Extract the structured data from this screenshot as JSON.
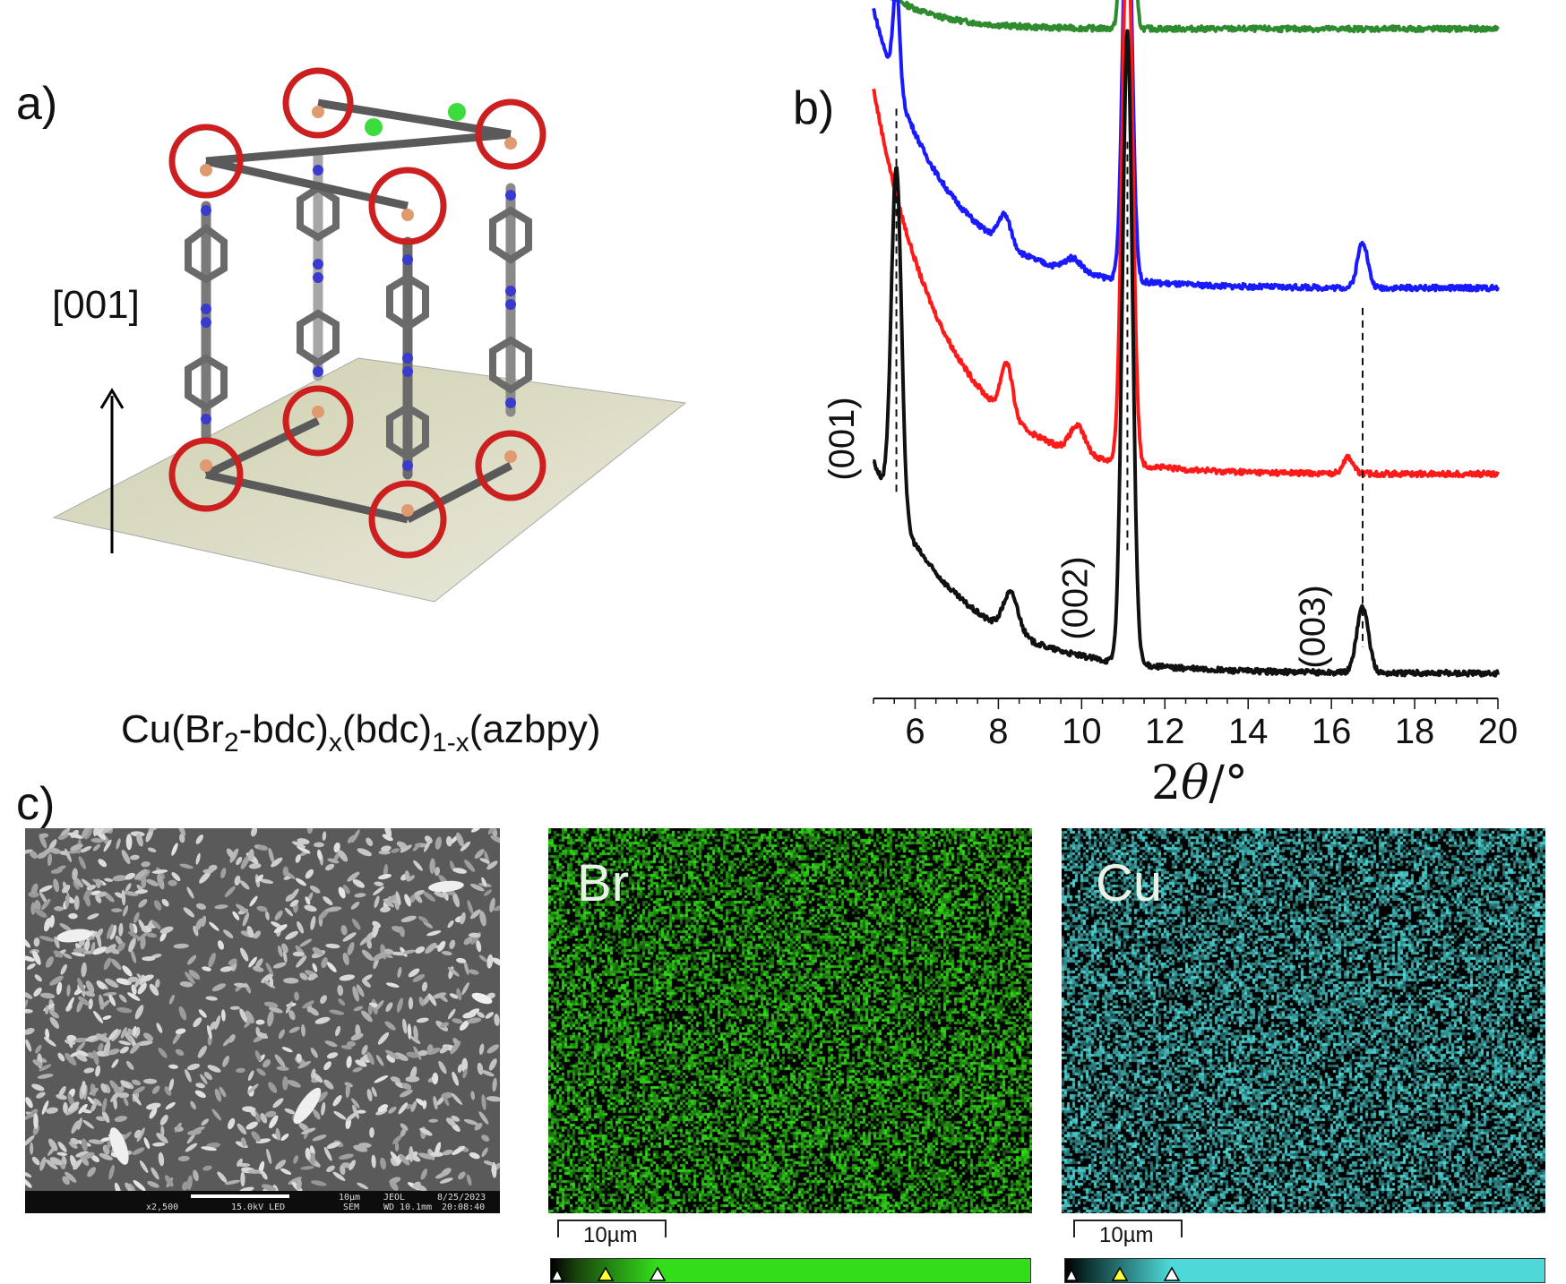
{
  "panels": {
    "a": {
      "label": "a)",
      "arrow_label": "[001]",
      "formula": {
        "p1": "Cu(Br",
        "s1": "2",
        "p2": "-bdc)",
        "s2": "x",
        "p3": "(bdc)",
        "s3": "1-x",
        "p4": "(azbpy)"
      }
    },
    "b": {
      "label": "b)"
    },
    "c": {
      "label": "c)"
    }
  },
  "chart_data": {
    "type": "line",
    "xlabel_prefix": "2",
    "xlabel_symbol": "θ",
    "xlabel_suffix": "/°",
    "xlim": [
      5,
      20
    ],
    "xticks": [
      6,
      8,
      10,
      12,
      14,
      16,
      18,
      20
    ],
    "peak_labels": [
      {
        "text": "(001)",
        "x": 5.5
      },
      {
        "text": "(002)",
        "x": 11.1
      },
      {
        "text": "(003)",
        "x": 16.7
      }
    ],
    "series": [
      {
        "color": "#2e8b2e",
        "baseline": 0.97,
        "decay": [
          0.07,
          1.2
        ],
        "peaks": [
          [
            11.1,
            0.92,
            0.1
          ]
        ]
      },
      {
        "color": "#1a1aff",
        "baseline": 0.58,
        "decay": [
          0.42,
          1.7
        ],
        "peaks": [
          [
            5.55,
            0.15,
            0.08
          ],
          [
            8.15,
            0.045,
            0.15
          ],
          [
            9.8,
            0.02,
            0.2
          ],
          [
            11.1,
            0.62,
            0.11
          ],
          [
            16.75,
            0.07,
            0.12
          ]
        ]
      },
      {
        "color": "#ff1a1a",
        "baseline": 0.3,
        "decay": [
          0.58,
          1.7
        ],
        "peaks": [
          [
            8.2,
            0.08,
            0.14
          ],
          [
            9.9,
            0.04,
            0.18
          ],
          [
            11.1,
            0.85,
            0.12
          ],
          [
            16.4,
            0.025,
            0.12
          ]
        ]
      },
      {
        "color": "#111111",
        "baseline": 0.0,
        "decay": [
          0.32,
          2.0
        ],
        "peaks": [
          [
            5.55,
            0.52,
            0.12
          ],
          [
            8.3,
            0.06,
            0.18
          ],
          [
            11.1,
            0.95,
            0.12
          ],
          [
            16.75,
            0.1,
            0.14
          ]
        ]
      }
    ]
  },
  "sem": {
    "scale_text": "10µm",
    "meta1": "x2,500",
    "meta2": "15.0kV LED",
    "meta3": "SEM",
    "meta4": "JEOL",
    "meta5": "WD 10.1mm",
    "meta6": "8/25/2023",
    "meta7": "20:08:40"
  },
  "maps": [
    {
      "element": "Br",
      "scale": "10µm",
      "color": "#33dd1a"
    },
    {
      "element": "Cu",
      "scale": "10µm",
      "color": "#4fd8d8"
    }
  ]
}
